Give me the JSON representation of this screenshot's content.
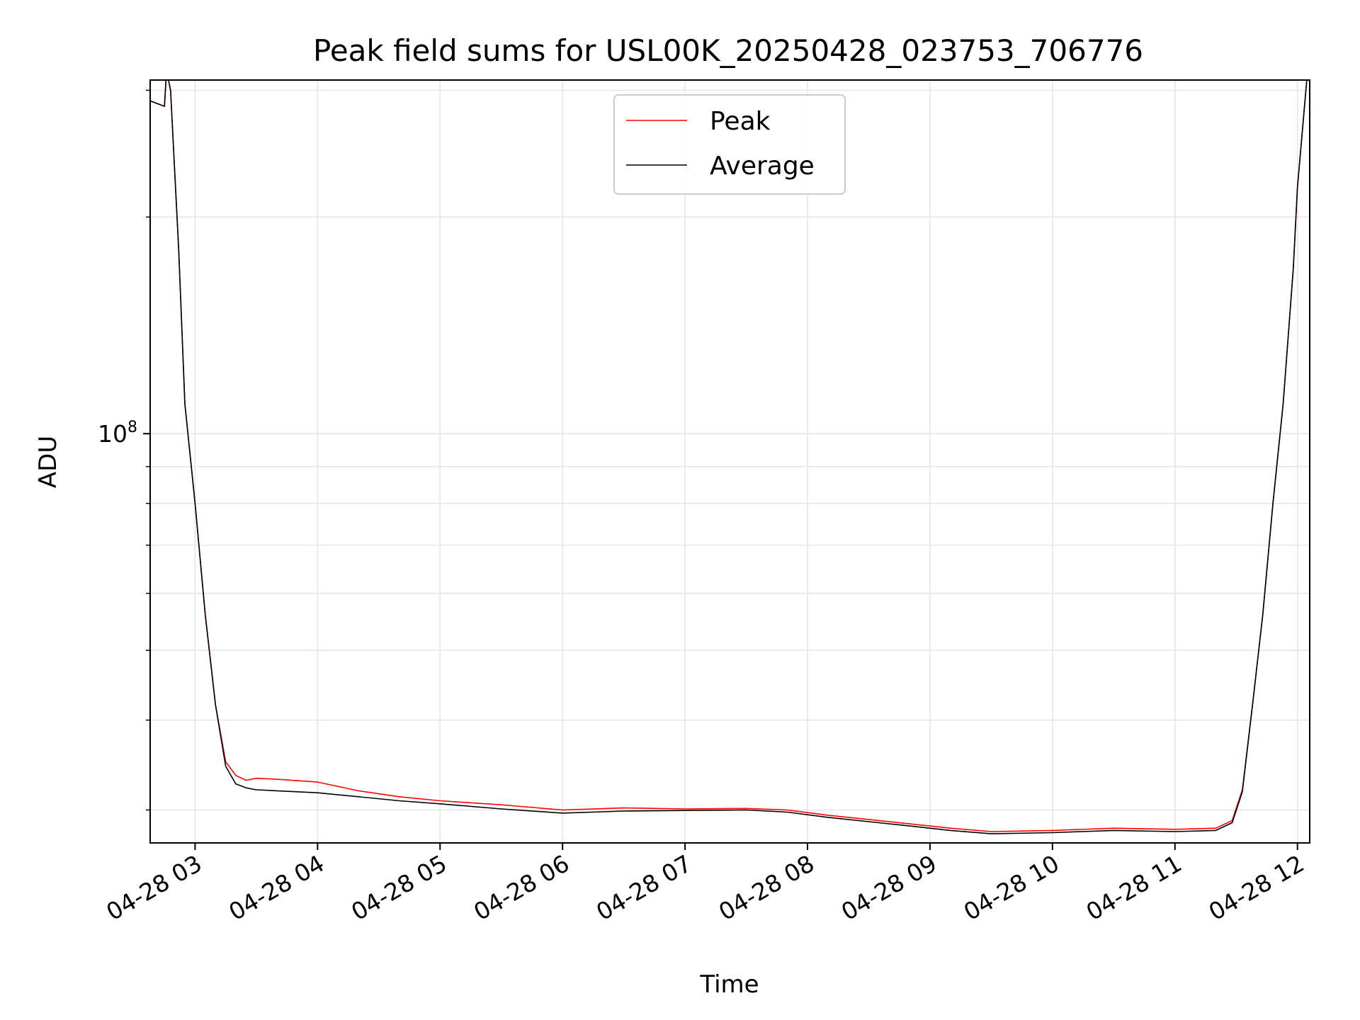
{
  "chart_data": {
    "type": "line",
    "title": "Peak field sums for USL00K_20250428_023753_706776",
    "xlabel": "Time",
    "ylabel": "ADU",
    "x_ticks": [
      "04-28 03",
      "04-28 04",
      "04-28 05",
      "04-28 06",
      "04-28 07",
      "04-28 08",
      "04-28 09",
      "04-28 10",
      "04-28 11",
      "04-28 12"
    ],
    "y_ticks": [
      {
        "value": 100000000,
        "base": "10",
        "exponent": "8"
      }
    ],
    "y_scale": "log",
    "ylim": [
      27000000,
      310000000
    ],
    "xlim": [
      "2025-04-28 02:38",
      "2025-04-28 12:06"
    ],
    "grid": true,
    "legend": {
      "placement": "top-center"
    },
    "colors": {
      "peak": "#ff0000",
      "average": "#000000",
      "grid": "#e6e6e6"
    },
    "series": [
      {
        "name": "Peak",
        "color": "#ff0000",
        "x": [
          "2025-04-28 02:38",
          "2025-04-28 02:45",
          "2025-04-28 02:46",
          "2025-04-28 02:48",
          "2025-04-28 02:52",
          "2025-04-28 02:55",
          "2025-04-28 03:00",
          "2025-04-28 03:05",
          "2025-04-28 03:10",
          "2025-04-28 03:15",
          "2025-04-28 03:20",
          "2025-04-28 03:25",
          "2025-04-28 03:30",
          "2025-04-28 03:40",
          "2025-04-28 04:00",
          "2025-04-28 04:20",
          "2025-04-28 04:40",
          "2025-04-28 05:00",
          "2025-04-28 05:30",
          "2025-04-28 06:00",
          "2025-04-28 06:30",
          "2025-04-28 07:00",
          "2025-04-28 07:30",
          "2025-04-28 07:50",
          "2025-04-28 08:10",
          "2025-04-28 08:30",
          "2025-04-28 08:50",
          "2025-04-28 09:10",
          "2025-04-28 09:30",
          "2025-04-28 10:00",
          "2025-04-28 10:30",
          "2025-04-28 11:00",
          "2025-04-28 11:20",
          "2025-04-28 11:28",
          "2025-04-28 11:33",
          "2025-04-28 11:38",
          "2025-04-28 11:43",
          "2025-04-28 11:48",
          "2025-04-28 11:53",
          "2025-04-28 11:58",
          "2025-04-28 12:00",
          "2025-04-28 12:05"
        ],
        "values": [
          290000000,
          285000000,
          320000000,
          300000000,
          180000000,
          110000000,
          80000000,
          56000000,
          42000000,
          35000000,
          33500000,
          33000000,
          33200000,
          33100000,
          32800000,
          31900000,
          31300000,
          30900000,
          30500000,
          30000000,
          30200000,
          30100000,
          30150000,
          30000000,
          29500000,
          29100000,
          28700000,
          28300000,
          28000000,
          28100000,
          28300000,
          28200000,
          28300000,
          29000000,
          32000000,
          42000000,
          56000000,
          80000000,
          110000000,
          170000000,
          220000000,
          320000000
        ]
      },
      {
        "name": "Average",
        "color": "#000000",
        "x": [
          "2025-04-28 02:38",
          "2025-04-28 02:45",
          "2025-04-28 02:46",
          "2025-04-28 02:48",
          "2025-04-28 02:52",
          "2025-04-28 02:55",
          "2025-04-28 03:00",
          "2025-04-28 03:05",
          "2025-04-28 03:10",
          "2025-04-28 03:15",
          "2025-04-28 03:20",
          "2025-04-28 03:25",
          "2025-04-28 03:30",
          "2025-04-28 03:40",
          "2025-04-28 04:00",
          "2025-04-28 04:20",
          "2025-04-28 04:40",
          "2025-04-28 05:00",
          "2025-04-28 05:30",
          "2025-04-28 06:00",
          "2025-04-28 06:30",
          "2025-04-28 07:00",
          "2025-04-28 07:30",
          "2025-04-28 07:50",
          "2025-04-28 08:10",
          "2025-04-28 08:30",
          "2025-04-28 08:50",
          "2025-04-28 09:10",
          "2025-04-28 09:30",
          "2025-04-28 10:00",
          "2025-04-28 10:30",
          "2025-04-28 11:00",
          "2025-04-28 11:20",
          "2025-04-28 11:28",
          "2025-04-28 11:33",
          "2025-04-28 11:38",
          "2025-04-28 11:43",
          "2025-04-28 11:48",
          "2025-04-28 11:53",
          "2025-04-28 11:58",
          "2025-04-28 12:00",
          "2025-04-28 12:05"
        ],
        "values": [
          290000000,
          285000000,
          320000000,
          300000000,
          180000000,
          110000000,
          80000000,
          56000000,
          42000000,
          34500000,
          32600000,
          32200000,
          32000000,
          31900000,
          31700000,
          31300000,
          30900000,
          30600000,
          30100000,
          29700000,
          29900000,
          29950000,
          30000000,
          29800000,
          29300000,
          28900000,
          28500000,
          28100000,
          27800000,
          27900000,
          28100000,
          28000000,
          28100000,
          28800000,
          31800000,
          42000000,
          56000000,
          80000000,
          110000000,
          170000000,
          220000000,
          320000000
        ]
      }
    ]
  }
}
